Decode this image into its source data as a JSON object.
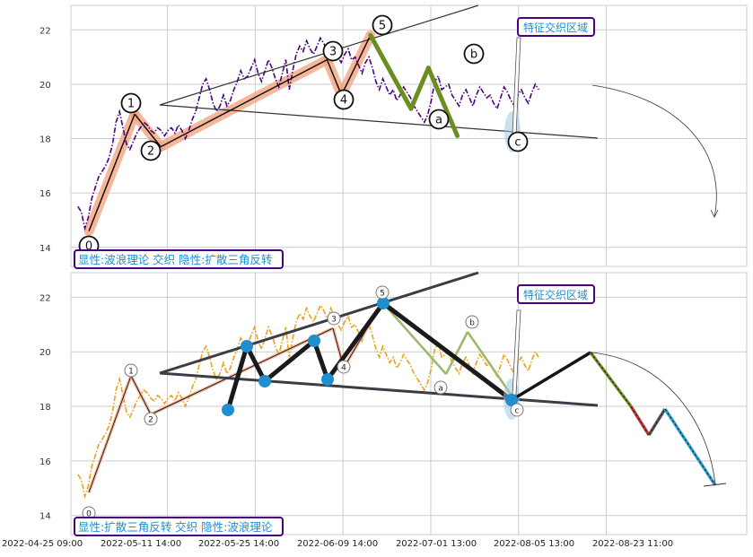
{
  "chart_data": [
    {
      "type": "line",
      "panel": "top",
      "title": "",
      "xlabel": "",
      "ylabel": "",
      "ylim": [
        13.3,
        22.9
      ],
      "yticks": [
        14,
        16,
        18,
        20,
        22
      ],
      "grid": true,
      "caption": "显性:波浪理论 交织 隐性:扩散三角反转",
      "callout": "特征交织区域",
      "series": [
        {
          "role": "price",
          "values": [
            15.5,
            15.3,
            14.7,
            15.1,
            15.8,
            16.2,
            16.6,
            16.8,
            17.0,
            17.3,
            17.8,
            18.6,
            19.0,
            18.4,
            17.8,
            17.6,
            17.9,
            18.2,
            18.4,
            18.6,
            18.5,
            18.3,
            18.2,
            18.4,
            18.3,
            18.1,
            18.3,
            18.4,
            18.2,
            18.5,
            18.3,
            18.0,
            18.3,
            18.7,
            19.0,
            19.5,
            20.0,
            20.2,
            19.8,
            19.3,
            19.0,
            19.2,
            19.6,
            19.2,
            19.4,
            19.8,
            20.1,
            20.5,
            20.2,
            20.3,
            20.6,
            20.9,
            20.4,
            20.1,
            20.5,
            20.9,
            20.6,
            20.2,
            19.9,
            20.4,
            20.9,
            19.8,
            20.5,
            21.1,
            21.4,
            21.2,
            21.6,
            21.3,
            21.1,
            21.4,
            21.7,
            21.5,
            21.2,
            21.6,
            21.3,
            21.0,
            20.8,
            21.1,
            21.3,
            20.9,
            21.0,
            20.7,
            20.4,
            20.8,
            21.0,
            20.6,
            20.1,
            19.8,
            20.2,
            19.9,
            19.6,
            19.8,
            19.4,
            19.6,
            19.9,
            19.7,
            19.5,
            19.2,
            19.0,
            18.8,
            18.6,
            18.9,
            19.4,
            20.1,
            20.3,
            19.8,
            19.9,
            20.0,
            19.6,
            19.4,
            19.2,
            19.6,
            19.8,
            19.5,
            19.2,
            19.6,
            19.9,
            19.7,
            19.5,
            19.6,
            19.3,
            19.1,
            19.5,
            19.9,
            19.7,
            19.4,
            19.2,
            19.6,
            19.8,
            19.5,
            19.3,
            19.7,
            20.0,
            19.8
          ]
        },
        {
          "role": "wave-impulse",
          "points": [
            [
              0.19,
              14.6
            ],
            [
              0.98,
              18.9
            ],
            [
              1.43,
              17.7
            ],
            [
              4.3,
              20.9
            ],
            [
              4.55,
              19.6
            ],
            [
              5.05,
              21.8
            ]
          ]
        },
        {
          "role": "wave-correction",
          "points": [
            [
              5.05,
              21.8
            ],
            [
              5.75,
              19.1
            ],
            [
              6.05,
              20.6
            ],
            [
              6.55,
              18.1
            ]
          ]
        },
        {
          "role": "triangle-upper",
          "points": [
            [
              1.0,
              19.1
            ],
            [
              6.5,
              23.0
            ]
          ]
        },
        {
          "role": "triangle-lower",
          "points": [
            [
              1.0,
              19.1
            ],
            [
              7.0,
              18.0
            ]
          ]
        },
        {
          "role": "forecast-arrow",
          "points": [
            [
              7.0,
              19.9
            ],
            [
              8.33,
              15.0
            ]
          ]
        }
      ],
      "wave_labels": [
        {
          "text": "0",
          "x": 0.15,
          "y": 13.95
        },
        {
          "text": "1",
          "x": 0.81,
          "y": 19.25
        },
        {
          "text": "2",
          "x": 1.05,
          "y": 17.45
        },
        {
          "text": "3",
          "x": 2.31,
          "y": 21.2
        },
        {
          "text": "4",
          "x": 2.47,
          "y": 19.4
        },
        {
          "text": "5",
          "x": 2.87,
          "y": 22.2
        },
        {
          "text": "a",
          "x": 3.5,
          "y": 18.65
        },
        {
          "text": "b",
          "x": 3.78,
          "y": 21.1
        },
        {
          "text": "c",
          "x": 4.19,
          "y": 17.85
        }
      ]
    },
    {
      "type": "line",
      "panel": "bottom",
      "title": "",
      "xlabel": "",
      "ylabel": "",
      "ylim": [
        13.3,
        22.9
      ],
      "yticks": [
        14,
        16,
        18,
        20,
        22
      ],
      "grid": true,
      "caption": "显性:扩散三角反转 交织 隐性:波浪理论",
      "callout": "特征交织区域",
      "x_tick_labels": [
        "2022-04-25 09:00",
        "2022-05-11 14:00",
        "2022-05-25 14:00",
        "2022-06-09 14:00",
        "2022-07-01 13:00",
        "2022-08-05 13:00",
        "2022-08-23 11:00"
      ],
      "triangle_points": [
        [
          1.6,
          17.8
        ],
        [
          1.8,
          20.2
        ],
        [
          2.0,
          18.9
        ],
        [
          2.55,
          20.4
        ],
        [
          2.7,
          18.9
        ],
        [
          3.3,
          21.8
        ],
        [
          4.4,
          18.2
        ]
      ],
      "forecast_segments": [
        {
          "from": [
            4.4,
            18.2
          ],
          "to": [
            5.3,
            19.9
          ],
          "color": "#111111"
        },
        {
          "from": [
            5.3,
            19.9
          ],
          "to": [
            5.55,
            17.9
          ],
          "color": "#6b8e23"
        },
        {
          "from": [
            5.55,
            17.9
          ],
          "to": [
            5.75,
            16.9
          ],
          "color": "#c0392b"
        },
        {
          "from": [
            5.75,
            16.9
          ],
          "to": [
            5.95,
            17.8
          ],
          "color": "#555555"
        },
        {
          "from": [
            5.95,
            17.8
          ],
          "to": [
            6.5,
            14.95
          ],
          "color": "#29a3d8"
        }
      ],
      "wave_labels": [
        {
          "text": "0",
          "x": 0.15,
          "y": 13.95
        },
        {
          "text": "1",
          "x": 0.81,
          "y": 19.25
        },
        {
          "text": "2",
          "x": 1.05,
          "y": 17.45
        },
        {
          "text": "3",
          "x": 2.31,
          "y": 21.2
        },
        {
          "text": "4",
          "x": 2.47,
          "y": 19.4
        },
        {
          "text": "5",
          "x": 2.87,
          "y": 22.2
        },
        {
          "text": "a",
          "x": 3.5,
          "y": 18.65
        },
        {
          "text": "b",
          "x": 3.78,
          "y": 21.1
        },
        {
          "text": "c",
          "x": 4.19,
          "y": 17.85
        }
      ]
    }
  ],
  "colors": {
    "price_top": "#4b0082",
    "price_bottom": "#e8a317",
    "impulse_top": "#111111",
    "impulse_halo": "#f4a582",
    "correction_top": "#6b8e23",
    "triangle_lines": "#333333",
    "triangle_bottom": "#3a3d45",
    "node_blue": "#1f8fcf",
    "caption_text": "#1f8fcf",
    "caption_border": "#4b0082",
    "grid": "#cccccc"
  }
}
